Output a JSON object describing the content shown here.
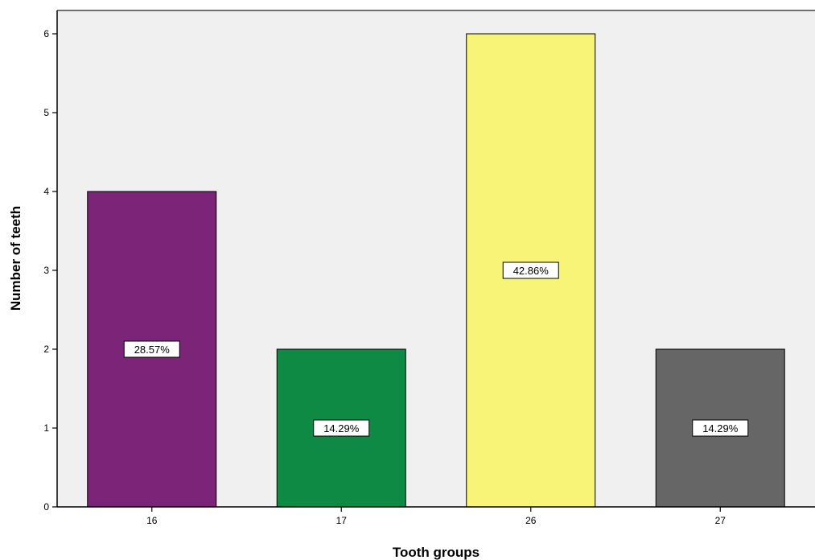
{
  "chart_data": {
    "type": "bar",
    "title": "",
    "xlabel": "Tooth groups",
    "ylabel": "Number of teeth",
    "categories": [
      "16",
      "17",
      "26",
      "27"
    ],
    "values": [
      4,
      2,
      6,
      2
    ],
    "labels": [
      "28.57%",
      "14.29%",
      "42.86%",
      "14.29%"
    ],
    "colors": [
      "#7b2478",
      "#0e8a45",
      "#f8f477",
      "#666666"
    ],
    "yticks": [
      0,
      1,
      2,
      3,
      4,
      5,
      6
    ],
    "ylim": [
      0,
      6.3
    ],
    "grid": false,
    "legend": "none",
    "background": "#f0f0f0"
  }
}
